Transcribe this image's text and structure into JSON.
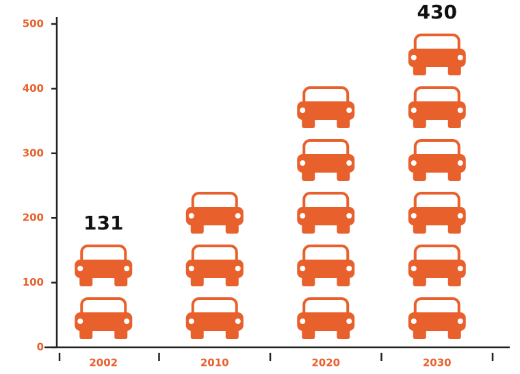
{
  "chart_data": {
    "type": "pictograph",
    "categories": [
      "2002",
      "2010",
      "2020",
      "2030"
    ],
    "values": [
      131,
      200,
      360,
      430
    ],
    "value_labels": [
      "131",
      null,
      null,
      "430"
    ],
    "color": "#e8602c",
    "ylim": [
      0,
      500
    ],
    "yticks": [
      0,
      100,
      200,
      300,
      400,
      500
    ]
  }
}
